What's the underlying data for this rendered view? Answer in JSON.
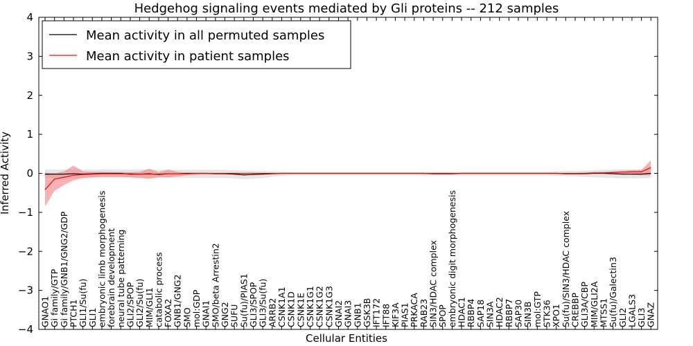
{
  "chart_data": {
    "type": "line",
    "title": "Hedgehog signaling events mediated by Gli proteins -- 212 samples",
    "xlabel": "Cellular Entities",
    "ylabel": "Inferred Activity",
    "ylim": [
      -4,
      4
    ],
    "yticks": [
      -4,
      -3,
      -2,
      -1,
      0,
      1,
      2,
      3,
      4
    ],
    "ytick_labels": [
      "−4",
      "−3",
      "−2",
      "−1",
      "0",
      "1",
      "2",
      "3",
      "4"
    ],
    "grid": false,
    "legend_position": "top-left",
    "categories": [
      "GNAO1",
      "Gi family/GTP",
      "Gi family/GNB1/GNG2/GDP",
      "PTCH1",
      "GLI1/Su(fu)",
      "GLI1",
      "embryonic limb morphogenesis",
      "forebrain development",
      "neural tube patterning",
      "GLI2/SPOP",
      "GLI2/Su(fu)",
      "MIM/GLI1",
      "catabolic process",
      "FOXA2",
      "GNB1/GNG2",
      "SMO",
      "mol:GDP",
      "GNAI1",
      "SMO/beta Arrestin2",
      "GNG2",
      "SUFU",
      "Su(fu)/PIAS1",
      "GLI3/SPOP",
      "GLI3/Su(fu)",
      "ARRB2",
      "CSNK1A1",
      "CSNK1D",
      "CSNK1E",
      "CSNK1G1",
      "CSNK1G2",
      "CSNK1G3",
      "GNAI2",
      "GNAI3",
      "GNB1",
      "GSK3B",
      "IFT172",
      "IFT88",
      "KIF3A",
      "PIAS1",
      "PRKACA",
      "RAB23",
      "SIN3/HDAC complex",
      "SPOP",
      "embryonic digit morphogenesis",
      "HDAC1",
      "RBBP4",
      "SAP18",
      "SIN3A",
      "HDAC2",
      "RBBP7",
      "SAP30",
      "SIN3B",
      "mol:GTP",
      "STK36",
      "XPO1",
      "Su(fu)/SIN3/HDAC complex",
      "CREBBP",
      "GLI3A/CBP",
      "MIM/GLI2A",
      "MTSS1",
      "Su(fu)/Galectin3",
      "GLI2",
      "LGALS3",
      "GLI3",
      "GNAZ"
    ],
    "series": [
      {
        "name": "Mean activity in all permuted samples",
        "color": "#000000",
        "values": [
          -0.02,
          -0.02,
          -0.02,
          -0.01,
          -0.02,
          -0.01,
          0,
          0,
          0,
          -0.02,
          -0.02,
          -0.01,
          -0.03,
          -0.01,
          -0.01,
          0,
          0,
          0,
          -0.01,
          -0.01,
          -0.02,
          -0.04,
          -0.03,
          -0.02,
          -0.01,
          0,
          0,
          0,
          0,
          0,
          0,
          0,
          0,
          0,
          0,
          0,
          0,
          0,
          0,
          0,
          0,
          -0.01,
          -0.01,
          -0.01,
          0,
          0,
          0,
          0,
          0,
          0,
          0,
          0,
          0,
          0,
          0,
          -0.01,
          -0.01,
          -0.01,
          0,
          0,
          -0.01,
          -0.02,
          -0.02,
          -0.02,
          0
        ],
        "band": {
          "color": "#c8c8c8",
          "upper": [
            0.1,
            0.1,
            0.1,
            0.1,
            0.1,
            0.1,
            0.1,
            0.1,
            0.1,
            0.1,
            0.1,
            0.1,
            0.09,
            0.09,
            0.09,
            0.09,
            0.09,
            0.09,
            0.09,
            0.09,
            0.08,
            0.07,
            0.06,
            0.06,
            0.05,
            0.04,
            0.03,
            0.03,
            0.03,
            0.03,
            0.03,
            0.03,
            0.03,
            0.03,
            0.03,
            0.03,
            0.03,
            0.03,
            0.03,
            0.03,
            0.04,
            0.04,
            0.04,
            0.04,
            0.04,
            0.04,
            0.04,
            0.04,
            0.04,
            0.04,
            0.04,
            0.04,
            0.04,
            0.04,
            0.05,
            0.06,
            0.06,
            0.07,
            0.08,
            0.09,
            0.1,
            0.1,
            0.1,
            0.1,
            0.12
          ],
          "lower": [
            -0.12,
            -0.12,
            -0.12,
            -0.12,
            -0.12,
            -0.12,
            -0.12,
            -0.12,
            -0.12,
            -0.12,
            -0.12,
            -0.12,
            -0.12,
            -0.12,
            -0.12,
            -0.12,
            -0.12,
            -0.12,
            -0.12,
            -0.12,
            -0.13,
            -0.15,
            -0.14,
            -0.12,
            -0.09,
            -0.06,
            -0.04,
            -0.04,
            -0.04,
            -0.04,
            -0.04,
            -0.04,
            -0.04,
            -0.04,
            -0.04,
            -0.04,
            -0.04,
            -0.04,
            -0.04,
            -0.04,
            -0.05,
            -0.05,
            -0.05,
            -0.05,
            -0.05,
            -0.05,
            -0.05,
            -0.05,
            -0.05,
            -0.05,
            -0.05,
            -0.05,
            -0.05,
            -0.05,
            -0.06,
            -0.07,
            -0.08,
            -0.09,
            -0.1,
            -0.11,
            -0.12,
            -0.13,
            -0.13,
            -0.13,
            -0.12
          ]
        }
      },
      {
        "name": "Mean activity in patient samples",
        "color": "#ff0000",
        "values": [
          -0.42,
          -0.15,
          -0.1,
          -0.05,
          -0.03,
          -0.02,
          -0.01,
          -0.01,
          -0.01,
          -0.01,
          -0.02,
          -0.02,
          -0.02,
          -0.01,
          -0.01,
          -0.01,
          0,
          0,
          0,
          0,
          0,
          0,
          0,
          0,
          0,
          0,
          0,
          0,
          0,
          0,
          0,
          0,
          0,
          0,
          0,
          0,
          0,
          0,
          0,
          0,
          0,
          0,
          0,
          0,
          0,
          0,
          0,
          0,
          0,
          0,
          0,
          0,
          0,
          0,
          0,
          0,
          0,
          0,
          0.01,
          0.01,
          0.02,
          0.03,
          0.04,
          0.04,
          0.15
        ],
        "band": {
          "color": "#f08080",
          "upper": [
            0.02,
            0,
            0.05,
            0.2,
            0.05,
            0.04,
            0.04,
            0.03,
            0.03,
            0.03,
            0.04,
            0.12,
            0.03,
            0.1,
            0.04,
            0.02,
            0.01,
            0.01,
            0.01,
            0.01,
            0.01,
            0.01,
            0.01,
            0.01,
            0.01,
            0.01,
            0.01,
            0.01,
            0.01,
            0.01,
            0.01,
            0.01,
            0.01,
            0.01,
            0.01,
            0.01,
            0.01,
            0.01,
            0.01,
            0.01,
            0.01,
            0.01,
            0.01,
            0.01,
            0.01,
            0.01,
            0.01,
            0.01,
            0.01,
            0.01,
            0.01,
            0.01,
            0.01,
            0.01,
            0.01,
            0.01,
            0.01,
            0.02,
            0.03,
            0.04,
            0.05,
            0.07,
            0.08,
            0.09,
            0.33
          ],
          "lower": [
            -0.85,
            -0.45,
            -0.3,
            -0.18,
            -0.12,
            -0.1,
            -0.09,
            -0.09,
            -0.09,
            -0.1,
            -0.12,
            -0.14,
            -0.1,
            -0.1,
            -0.08,
            -0.05,
            -0.03,
            -0.02,
            -0.02,
            -0.02,
            -0.01,
            -0.01,
            -0.01,
            -0.01,
            -0.01,
            -0.01,
            -0.01,
            -0.01,
            -0.01,
            -0.01,
            -0.01,
            -0.01,
            -0.01,
            -0.01,
            -0.01,
            -0.01,
            -0.01,
            -0.01,
            -0.01,
            -0.01,
            -0.01,
            -0.01,
            -0.01,
            -0.01,
            -0.01,
            -0.01,
            -0.01,
            -0.01,
            -0.01,
            -0.01,
            -0.01,
            -0.01,
            -0.01,
            -0.01,
            -0.01,
            -0.01,
            -0.01,
            -0.01,
            -0.01,
            -0.01,
            -0.02,
            -0.02,
            -0.03,
            -0.05,
            -0.05
          ]
        }
      }
    ]
  }
}
